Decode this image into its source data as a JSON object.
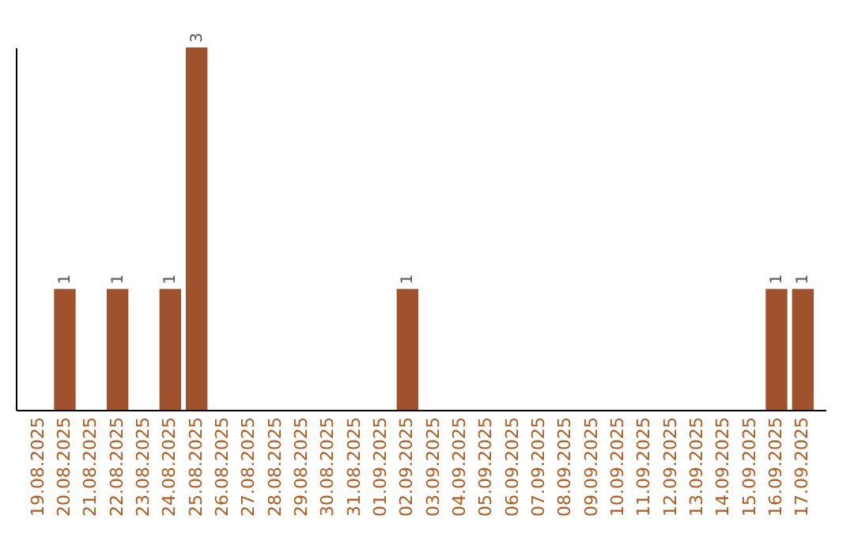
{
  "chart_data": {
    "type": "bar",
    "categories": [
      "19.08.2025",
      "20.08.2025",
      "21.08.2025",
      "22.08.2025",
      "23.08.2025",
      "24.08.2025",
      "25.08.2025",
      "26.08.2025",
      "27.08.2025",
      "28.08.2025",
      "29.08.2025",
      "30.08.2025",
      "31.08.2025",
      "01.09.2025",
      "02.09.2025",
      "03.09.2025",
      "04.09.2025",
      "05.09.2025",
      "06.09.2025",
      "07.09.2025",
      "08.09.2025",
      "09.09.2025",
      "10.09.2025",
      "11.09.2025",
      "12.09.2025",
      "13.09.2025",
      "14.09.2025",
      "15.09.2025",
      "16.09.2025",
      "17.09.2025"
    ],
    "values": [
      0,
      1,
      0,
      1,
      0,
      1,
      3,
      0,
      0,
      0,
      0,
      0,
      0,
      0,
      1,
      0,
      0,
      0,
      0,
      0,
      0,
      0,
      0,
      0,
      0,
      0,
      0,
      0,
      1,
      1
    ],
    "value_labels": [
      null,
      "1",
      null,
      "1",
      null,
      "1",
      "3",
      null,
      null,
      null,
      null,
      null,
      null,
      null,
      "1",
      null,
      null,
      null,
      null,
      null,
      null,
      null,
      null,
      null,
      null,
      null,
      null,
      null,
      "1",
      "1"
    ],
    "color": "#a0522d",
    "ylim": [
      0,
      3
    ],
    "tick_labels": "x",
    "grid": false
  }
}
